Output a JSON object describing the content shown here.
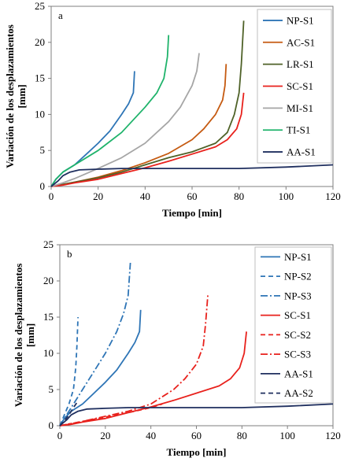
{
  "chart_data": [
    {
      "type": "line",
      "panel_label": "a",
      "xlabel": "Tiempo [min]",
      "ylabel": "Variación de los desplazamientos [mm]",
      "xlim": [
        0,
        120
      ],
      "ylim": [
        0,
        25
      ],
      "xticks": [
        0,
        20,
        40,
        60,
        80,
        100,
        120
      ],
      "yticks": [
        0,
        5,
        10,
        15,
        20,
        25
      ],
      "grid": false,
      "legend_position": "right",
      "series": [
        {
          "name": "NP-S1",
          "color": "#2e75b6",
          "dash": "solid",
          "x": [
            0,
            2,
            5,
            10,
            15,
            20,
            25,
            30,
            33,
            35,
            35.5
          ],
          "y": [
            0,
            1,
            2,
            3,
            4.5,
            6,
            7.7,
            10,
            11.5,
            13,
            16
          ]
        },
        {
          "name": "AC-S1",
          "color": "#c55a11",
          "dash": "solid",
          "x": [
            0,
            5,
            10,
            20,
            30,
            40,
            50,
            60,
            65,
            70,
            73,
            74,
            74.5
          ],
          "y": [
            0,
            0.3,
            0.6,
            1.3,
            2.2,
            3.3,
            4.6,
            6.5,
            8,
            10,
            12,
            14,
            17
          ]
        },
        {
          "name": "LR-S1",
          "color": "#4f6228",
          "dash": "solid",
          "x": [
            0,
            5,
            10,
            20,
            30,
            40,
            50,
            60,
            70,
            75,
            78,
            80,
            81,
            81.5,
            82
          ],
          "y": [
            0,
            0.3,
            0.6,
            1.2,
            2,
            3,
            4,
            4.8,
            6,
            7.5,
            10,
            13,
            17,
            20,
            23
          ]
        },
        {
          "name": "SC-S1",
          "color": "#e8211c",
          "dash": "solid",
          "x": [
            0,
            5,
            10,
            20,
            30,
            40,
            50,
            60,
            70,
            75,
            79,
            81,
            82
          ],
          "y": [
            0,
            0.2,
            0.5,
            1,
            1.8,
            2.6,
            3.5,
            4.5,
            5.5,
            6.5,
            8,
            10,
            13
          ]
        },
        {
          "name": "MI-S1",
          "color": "#a6a6a6",
          "dash": "solid",
          "x": [
            0,
            5,
            10,
            20,
            30,
            40,
            50,
            55,
            60,
            62,
            63
          ],
          "y": [
            0,
            0.5,
            1.1,
            2.5,
            4,
            6,
            9,
            11,
            14,
            16,
            18.5
          ]
        },
        {
          "name": "TI-S1",
          "color": "#1fb36b",
          "dash": "solid",
          "x": [
            0,
            2,
            5,
            10,
            20,
            30,
            40,
            45,
            48,
            49.5,
            50
          ],
          "y": [
            0,
            1,
            2,
            3,
            5,
            7.5,
            11,
            13,
            15,
            18,
            21
          ]
        },
        {
          "name": "AA-S1",
          "color": "#1f2f5f",
          "dash": "solid",
          "x": [
            0,
            3,
            5,
            8,
            12,
            20,
            30,
            40,
            60,
            80,
            100,
            120
          ],
          "y": [
            0,
            0.8,
            1.5,
            2,
            2.3,
            2.4,
            2.5,
            2.5,
            2.5,
            2.5,
            2.7,
            3
          ]
        }
      ]
    },
    {
      "type": "line",
      "panel_label": "b",
      "xlabel": "Tiempo [min]",
      "ylabel": "Variación de los desplazamientos [mm]",
      "xlim": [
        0,
        120
      ],
      "ylim": [
        0,
        25
      ],
      "xticks": [
        0,
        20,
        40,
        60,
        80,
        100,
        120
      ],
      "yticks": [
        0,
        5,
        10,
        15,
        20,
        25
      ],
      "grid": false,
      "legend_position": "right",
      "series": [
        {
          "name": "NP-S1",
          "color": "#2e75b6",
          "dash": "solid",
          "x": [
            0,
            2,
            5,
            10,
            15,
            20,
            25,
            30,
            33,
            35,
            35.5
          ],
          "y": [
            0,
            1,
            2,
            3,
            4.5,
            6,
            7.7,
            10,
            11.5,
            13,
            16
          ]
        },
        {
          "name": "NP-S2",
          "color": "#2e75b6",
          "dash": "dashed",
          "x": [
            0,
            2,
            4,
            6,
            7,
            7.5,
            8
          ],
          "y": [
            0,
            1.5,
            3,
            5,
            8,
            11,
            15
          ]
        },
        {
          "name": "NP-S3",
          "color": "#2e75b6",
          "dash": "dashdot",
          "x": [
            0,
            5,
            10,
            15,
            20,
            25,
            28,
            30,
            31
          ],
          "y": [
            0,
            2.5,
            5,
            7.5,
            10,
            13,
            15.5,
            18,
            22.5
          ]
        },
        {
          "name": "SC-S1",
          "color": "#e8211c",
          "dash": "solid",
          "x": [
            0,
            5,
            10,
            20,
            30,
            40,
            50,
            60,
            70,
            75,
            79,
            81,
            82
          ],
          "y": [
            0,
            0.2,
            0.5,
            1,
            1.8,
            2.6,
            3.5,
            4.5,
            5.5,
            6.5,
            8,
            10,
            13
          ]
        },
        {
          "name": "SC-S2",
          "color": "#e8211c",
          "dash": "dashed",
          "x": [
            0,
            5,
            10,
            20,
            30,
            40,
            45
          ],
          "y": [
            0,
            0.3,
            0.6,
            1.2,
            1.8,
            2.5,
            3
          ]
        },
        {
          "name": "SC-S3",
          "color": "#e8211c",
          "dash": "dashdot",
          "x": [
            0,
            10,
            20,
            30,
            40,
            50,
            55,
            60,
            63,
            64,
            65
          ],
          "y": [
            0,
            0.6,
            1.3,
            2,
            3,
            5,
            6.5,
            8.5,
            11,
            14,
            18
          ]
        },
        {
          "name": "AA-S1",
          "color": "#1f2f5f",
          "dash": "solid",
          "x": [
            0,
            3,
            5,
            8,
            12,
            20,
            30,
            40,
            60,
            80,
            100,
            120
          ],
          "y": [
            0,
            0.8,
            1.5,
            2,
            2.3,
            2.4,
            2.5,
            2.5,
            2.5,
            2.5,
            2.7,
            3
          ]
        },
        {
          "name": "AA-S2",
          "color": "#1f2f5f",
          "dash": "dashed",
          "x": [
            0,
            2,
            4,
            6,
            7.5
          ],
          "y": [
            0,
            0.7,
            1.5,
            2.5,
            3.2
          ]
        }
      ]
    }
  ]
}
